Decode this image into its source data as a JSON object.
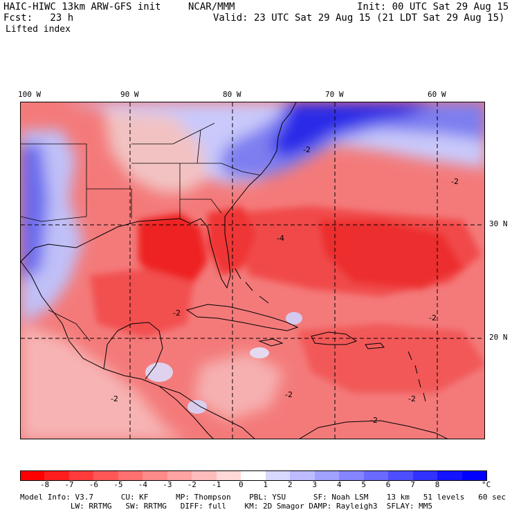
{
  "header": {
    "model": "HAIC-HIWC 13km ARW-GFS init",
    "org": "NCAR/MMM",
    "init": "Init: 00 UTC Sat 29 Aug 15",
    "fcst": "Fcst:   23 h",
    "valid": "Valid: 23 UTC Sat 29 Aug 15 (21 LDT Sat 29 Aug 15)",
    "field": "Lifted index"
  },
  "map": {
    "lon_labels": [
      "100 W",
      "90 W",
      "80 W",
      "70 W",
      "60 W"
    ],
    "lat_labels": [
      "30 N",
      "20 N"
    ],
    "contour_labels": [
      "-2",
      "-2",
      "-2",
      "-4",
      "-2",
      "-2",
      "-2",
      "-2",
      "-2"
    ],
    "colors": {
      "strong_negative": "#ee1111",
      "negative": "#f36464",
      "weak_negative": "#f8a8a8",
      "neutral": "#f5f5f5",
      "weak_positive": "#c8c8ff",
      "positive": "#7b7bf0",
      "strong_positive": "#1a1ae6"
    }
  },
  "legend": {
    "labels": [
      "-8",
      "-7",
      "-6",
      "-5",
      "-4",
      "-3",
      "-2",
      "-1",
      "0",
      "1",
      "2",
      "3",
      "4",
      "5",
      "6",
      "7",
      "8"
    ],
    "unit": "°C",
    "colors": [
      "#ff0000",
      "#ff1e1e",
      "#ff3b3b",
      "#ff5656",
      "#ff7070",
      "#ff8a8a",
      "#ffa3a3",
      "#ffbcbc",
      "#ffd8d8",
      "#ffffff",
      "#d7d7ff",
      "#bcbcff",
      "#a1a1ff",
      "#8585ff",
      "#6a6aff",
      "#4e4eff",
      "#3232ff",
      "#1414ff",
      "#0000ff"
    ]
  },
  "footer": {
    "line1": "Model Info: V3.7      CU: KF      MP: Thompson    PBL: YSU      SF: Noah LSM    13 km   51 levels   60 sec",
    "line2": "           LW: RRTMG   SW: RRTMG   DIFF: full    KM: 2D Smagor DAMP: Rayleigh3  SFLAY: MM5"
  }
}
